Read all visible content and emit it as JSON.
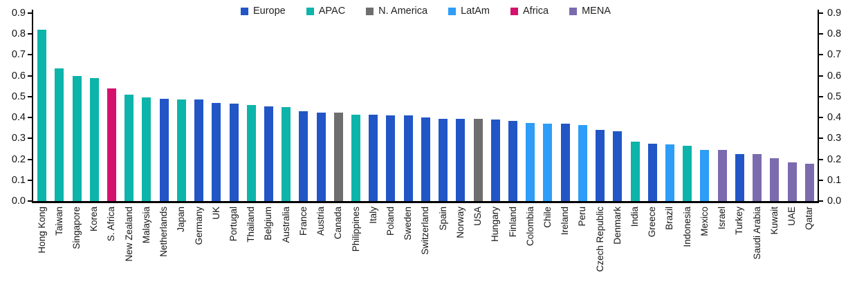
{
  "legend": [
    {
      "label": "Europe",
      "color": "#2256C7",
      "pattern": "solid"
    },
    {
      "label": "APAC",
      "color": "#0DB4A9",
      "pattern": "solid"
    },
    {
      "label": "N. America",
      "color": "#6E6E6E",
      "pattern": "stipple"
    },
    {
      "label": "LatAm",
      "color": "#2E9DF7",
      "pattern": "solid"
    },
    {
      "label": "Africa",
      "color": "#D4126E",
      "pattern": "solid"
    },
    {
      "label": "MENA",
      "color": "#7B6BAE",
      "pattern": "solid"
    }
  ],
  "chart_data": {
    "type": "bar",
    "title": "",
    "xlabel": "",
    "ylabel": "",
    "ylim": [
      0,
      0.9
    ],
    "yticks": [
      "0.9",
      "0.8",
      "0.7",
      "0.6",
      "0.5",
      "0.4",
      "0.3",
      "0.2",
      "0.1",
      "0.0"
    ],
    "grid": false,
    "dual_axis": true,
    "legend_position": "top-center",
    "categories": [
      "Hong Kong",
      "Taiwan",
      "Singapore",
      "Korea",
      "S. Africa",
      "New Zealand",
      "Malaysia",
      "Netherlands",
      "Japan",
      "Germany",
      "UK",
      "Portugal",
      "Thailand",
      "Belgium",
      "Australia",
      "France",
      "Austria",
      "Canada",
      "Philippines",
      "Italy",
      "Poland",
      "Sweden",
      "Switzerland",
      "Spain",
      "Norway",
      "USA",
      "Hungary",
      "Finland",
      "Colombia",
      "Chile",
      "Ireland",
      "Peru",
      "Czech Republic",
      "Denmark",
      "India",
      "Greece",
      "Brazil",
      "Indonesia",
      "Mexico",
      "Israel",
      "Turkey",
      "Saudi Arabia",
      "Kuwait",
      "UAE",
      "Qatar"
    ],
    "values": [
      0.82,
      0.635,
      0.6,
      0.59,
      0.54,
      0.51,
      0.495,
      0.49,
      0.485,
      0.485,
      0.47,
      0.465,
      0.46,
      0.455,
      0.45,
      0.43,
      0.425,
      0.425,
      0.415,
      0.415,
      0.41,
      0.41,
      0.4,
      0.395,
      0.395,
      0.395,
      0.39,
      0.385,
      0.375,
      0.37,
      0.37,
      0.365,
      0.34,
      0.335,
      0.285,
      0.275,
      0.27,
      0.265,
      0.245,
      0.245,
      0.225,
      0.225,
      0.205,
      0.185,
      0.18
    ],
    "groups": [
      "APAC",
      "APAC",
      "APAC",
      "APAC",
      "Africa",
      "APAC",
      "APAC",
      "Europe",
      "APAC",
      "Europe",
      "Europe",
      "Europe",
      "APAC",
      "Europe",
      "APAC",
      "Europe",
      "Europe",
      "N. America",
      "APAC",
      "Europe",
      "Europe",
      "Europe",
      "Europe",
      "Europe",
      "Europe",
      "N. America",
      "Europe",
      "Europe",
      "LatAm",
      "LatAm",
      "Europe",
      "LatAm",
      "Europe",
      "Europe",
      "APAC",
      "Europe",
      "LatAm",
      "APAC",
      "LatAm",
      "MENA",
      "Europe",
      "MENA",
      "MENA",
      "MENA",
      "MENA"
    ]
  }
}
